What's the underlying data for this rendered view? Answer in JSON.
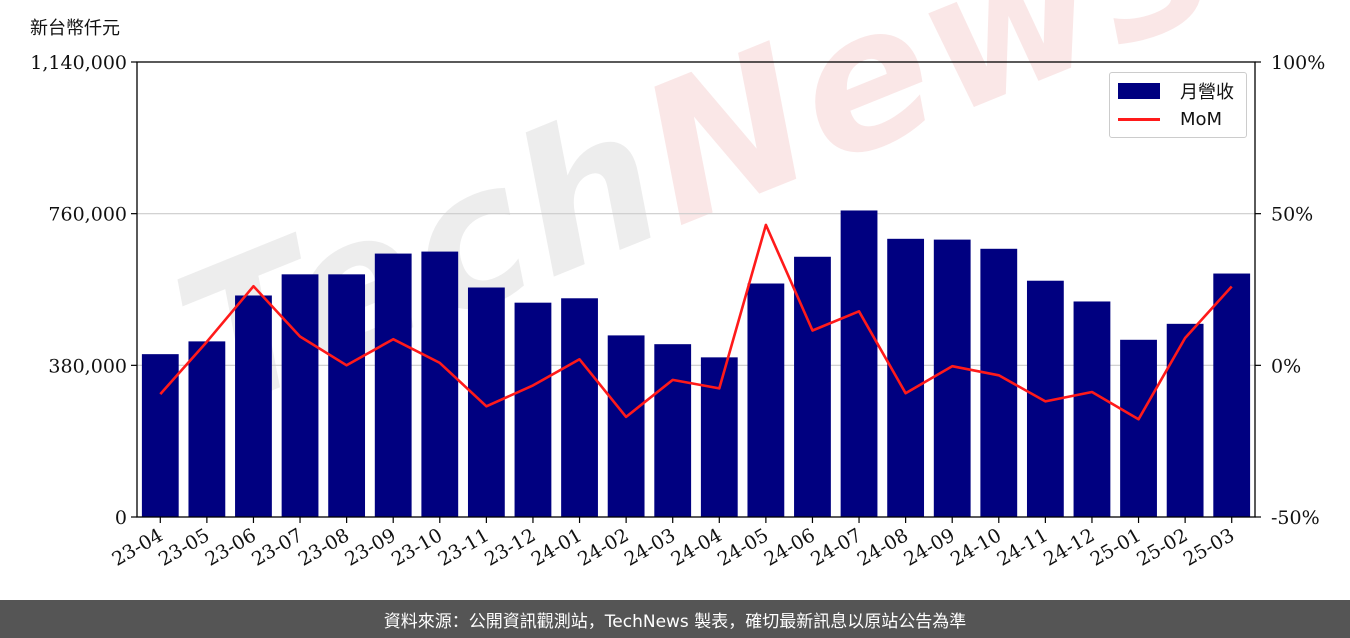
{
  "unit_label": "新台幣仟元",
  "watermark": {
    "part1": "Tech",
    "part2": "News"
  },
  "footer_text": "資料來源：公開資訊觀測站，TechNews 製表，確切最新訊息以原站公告為準",
  "colors": {
    "bar": "#000080",
    "line": "#ff1a1a",
    "grid": "#cccccc",
    "axis": "#000000",
    "footer_bg": "#555555"
  },
  "chart_data": {
    "type": "bar",
    "categories": [
      "23-04",
      "23-05",
      "23-06",
      "23-07",
      "23-08",
      "23-09",
      "23-10",
      "23-11",
      "23-12",
      "24-01",
      "24-02",
      "24-03",
      "24-04",
      "24-05",
      "24-06",
      "24-07",
      "24-08",
      "24-09",
      "24-10",
      "24-11",
      "24-12",
      "25-01",
      "25-02",
      "25-03"
    ],
    "series": [
      {
        "name": "月營收",
        "type": "bar",
        "axis": "left",
        "values": [
          408000,
          440000,
          555000,
          608000,
          608000,
          660000,
          665000,
          575000,
          537000,
          548000,
          455000,
          433000,
          400000,
          585000,
          652000,
          768000,
          697000,
          695000,
          672000,
          592000,
          540000,
          444000,
          484000,
          610000
        ]
      },
      {
        "name": "MoM",
        "type": "line",
        "axis": "right",
        "values": [
          -9.5,
          7.8,
          26.1,
          9.5,
          0.0,
          8.6,
          0.8,
          -13.5,
          -6.6,
          2.0,
          -17.0,
          -4.8,
          -7.6,
          46.3,
          11.5,
          17.8,
          -9.2,
          -0.3,
          -3.3,
          -11.9,
          -8.8,
          -17.8,
          9.0,
          26.0
        ]
      }
    ],
    "y_left": {
      "ylim": [
        0,
        1140000
      ],
      "ticks": [
        0,
        380000,
        760000,
        1140000
      ],
      "tick_labels": [
        "0",
        "380,000",
        "760,000",
        "1,140,000"
      ]
    },
    "y_right": {
      "ylim": [
        -50,
        100
      ],
      "ticks": [
        -50,
        0,
        50,
        100
      ],
      "tick_labels": [
        "-50%",
        "0%",
        "50%",
        "100%"
      ]
    },
    "title": "",
    "xlabel": "",
    "ylabel": "新台幣仟元",
    "grid": "horizontal",
    "legend": {
      "placement": "top-right",
      "entries": [
        "月營收",
        "MoM"
      ]
    }
  }
}
